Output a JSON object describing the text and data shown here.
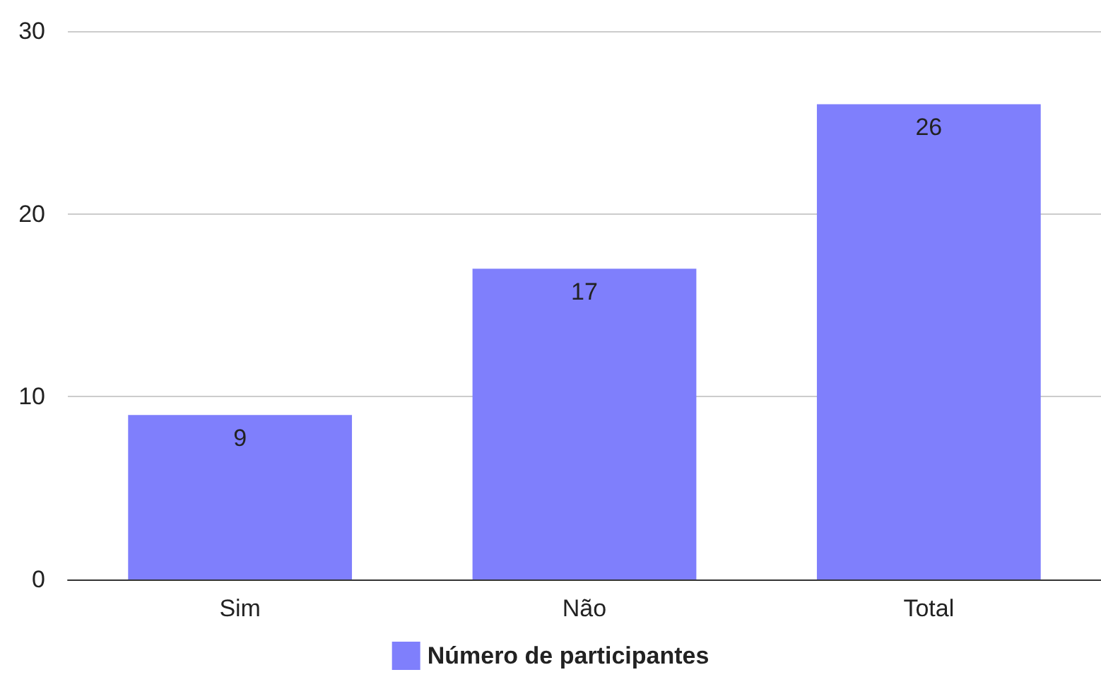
{
  "chart_data": {
    "type": "bar",
    "categories": [
      "Sim",
      "Não",
      "Total"
    ],
    "series": [
      {
        "name": "Número de participantes",
        "color": "#7f7ffc",
        "values": [
          9,
          17,
          26
        ]
      }
    ],
    "ylim": [
      0,
      30
    ],
    "yticks": [
      0,
      10,
      20,
      30
    ],
    "grid": "y",
    "legend": "bottom",
    "data_labels": true
  }
}
